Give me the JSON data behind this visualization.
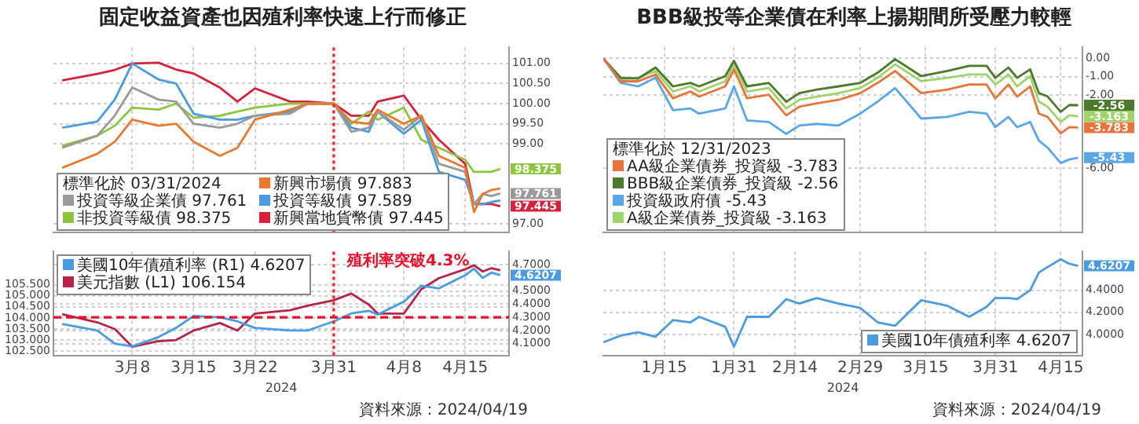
{
  "chart_data": [
    {
      "type": "line",
      "title": "固定收益資產也因殖利率快速上行而修正",
      "legend_title": "標準化於 03/31/2024",
      "legend": "bottom left",
      "grid": true,
      "tick_labels": "y",
      "x": [
        "2024-02-29",
        "2024-03-04",
        "2024-03-06",
        "2024-03-08",
        "2024-03-11",
        "2024-03-13",
        "2024-03-15",
        "2024-03-18",
        "2024-03-20",
        "2024-03-22",
        "2024-03-26",
        "2024-03-28",
        "2024-03-31",
        "2024-04-02",
        "2024-04-04",
        "2024-04-05",
        "2024-04-08",
        "2024-04-10",
        "2024-04-12",
        "2024-04-15",
        "2024-04-16",
        "2024-04-17",
        "2024-04-18",
        "2024-04-19"
      ],
      "xlim": [
        "2024-02-28",
        "2024-04-20"
      ],
      "xticks": [
        {
          "value": "2024-03-08",
          "label": null
        },
        {
          "value": "2024-03-15",
          "label": null
        },
        {
          "value": "2024-03-22",
          "label": null
        },
        {
          "value": "2024-03-31",
          "label": null
        },
        {
          "value": "2024-04-08",
          "label": null
        },
        {
          "value": "2024-04-15",
          "label": null
        }
      ],
      "ylim": [
        96.8,
        101.4
      ],
      "yticks": [
        {
          "value": 97,
          "label": "97.00"
        },
        {
          "value": 99,
          "label": "99.00"
        },
        {
          "value": 99.5,
          "label": "99.50"
        },
        {
          "value": 100,
          "label": "100.00"
        },
        {
          "value": 100.5,
          "label": "100.50"
        },
        {
          "value": 101,
          "label": "101.00"
        }
      ],
      "ref_lines": [
        {
          "axis": "x",
          "value": "2024-03-31",
          "color": "#ff1f1f",
          "line_style": "dotted"
        }
      ],
      "series": [
        {
          "name": "新興市場債 97.883",
          "color": "#e87a2e",
          "values": [
            98.4,
            98.75,
            99.05,
            99.6,
            99.45,
            99.5,
            99.05,
            98.7,
            98.9,
            99.6,
            99.85,
            100.0,
            100.0,
            99.55,
            99.5,
            99.85,
            99.5,
            99.7,
            98.7,
            98.4,
            97.3,
            97.75,
            97.85,
            97.883
          ]
        },
        {
          "name": "投資等級企業債 97.761",
          "color": "#9a9a9a",
          "values": [
            98.9,
            99.2,
            99.7,
            100.4,
            100.1,
            100.05,
            99.5,
            99.4,
            99.5,
            99.7,
            99.75,
            100.0,
            100.0,
            99.3,
            99.4,
            99.8,
            99.35,
            99.7,
            98.5,
            98.3,
            97.5,
            97.75,
            97.7,
            97.761
          ],
          "value_labels": [
            null,
            null,
            null,
            null,
            null,
            null,
            null,
            null,
            null,
            null,
            null,
            null,
            null,
            null,
            null,
            null,
            null,
            null,
            null,
            null,
            null,
            null,
            null,
            "97.761"
          ]
        },
        {
          "name": "投資等級債 97.589",
          "color": "#4a9be0",
          "values": [
            99.4,
            99.55,
            100.1,
            101.0,
            100.6,
            100.5,
            99.75,
            99.6,
            99.6,
            99.7,
            99.8,
            100.0,
            100.0,
            99.4,
            99.3,
            99.8,
            99.25,
            99.6,
            98.3,
            98.1,
            97.5,
            97.5,
            97.55,
            97.589
          ]
        },
        {
          "name": "非投資等級債 98.375",
          "color": "#8cc63f",
          "values": [
            98.95,
            99.2,
            99.45,
            99.9,
            99.85,
            100.0,
            99.65,
            99.7,
            99.8,
            99.9,
            100.0,
            100.0,
            100.0,
            99.5,
            99.8,
            99.6,
            99.9,
            99.1,
            98.9,
            98.6,
            98.3,
            98.3,
            98.3,
            98.375
          ],
          "value_labels": [
            null,
            null,
            null,
            null,
            null,
            null,
            null,
            null,
            null,
            null,
            null,
            null,
            null,
            null,
            null,
            null,
            null,
            null,
            null,
            null,
            null,
            null,
            null,
            "98.375"
          ]
        },
        {
          "name": "新興當地貨幣債 97.445",
          "color": "#d6213c",
          "values": [
            100.58,
            100.74,
            100.84,
            101.0,
            101.02,
            100.85,
            100.75,
            100.4,
            100.05,
            100.38,
            100.05,
            100.05,
            100.0,
            99.7,
            99.7,
            100.05,
            100.2,
            99.6,
            99.1,
            98.5,
            97.5,
            97.5,
            97.5,
            97.445
          ],
          "value_labels": [
            null,
            null,
            null,
            null,
            null,
            null,
            null,
            null,
            null,
            null,
            null,
            null,
            null,
            null,
            null,
            null,
            null,
            null,
            null,
            null,
            null,
            null,
            null,
            "97.445"
          ]
        }
      ]
    },
    {
      "type": "line",
      "xlabel": "2024",
      "legend": "top left",
      "grid": true,
      "x": [
        "2024-02-29",
        "2024-03-04",
        "2024-03-06",
        "2024-03-08",
        "2024-03-11",
        "2024-03-13",
        "2024-03-15",
        "2024-03-18",
        "2024-03-20",
        "2024-03-22",
        "2024-03-26",
        "2024-03-28",
        "2024-03-31",
        "2024-04-02",
        "2024-04-04",
        "2024-04-05",
        "2024-04-08",
        "2024-04-10",
        "2024-04-12",
        "2024-04-15",
        "2024-04-16",
        "2024-04-17",
        "2024-04-18",
        "2024-04-19"
      ],
      "xlim": [
        "2024-02-28",
        "2024-04-20"
      ],
      "xticks": [
        {
          "value": "2024-03-08",
          "label": "3月8"
        },
        {
          "value": "2024-03-15",
          "label": "3月15"
        },
        {
          "value": "2024-03-22",
          "label": "3月22"
        },
        {
          "value": "2024-03-31",
          "label": "3月31"
        },
        {
          "value": "2024-04-08",
          "label": "4月8"
        },
        {
          "value": "2024-04-15",
          "label": "4月15"
        }
      ],
      "ylim": [
        102.3,
        107.0
      ],
      "yticks": [
        {
          "value": 102.5,
          "label": "102.500"
        },
        {
          "value": 103,
          "label": "103.000"
        },
        {
          "value": 103.5,
          "label": "103.500"
        },
        {
          "value": 104,
          "label": "104.000"
        },
        {
          "value": 104.5,
          "label": "104.500"
        },
        {
          "value": 105,
          "label": "105.000"
        },
        {
          "value": 105.5,
          "label": "105.500"
        }
      ],
      "y2lim": [
        4.01,
        4.8
      ],
      "y2ticks": [
        {
          "value": 4.1,
          "label": "4.1000"
        },
        {
          "value": 4.2,
          "label": "4.2000"
        },
        {
          "value": 4.3,
          "label": "4.3000"
        },
        {
          "value": 4.4,
          "label": "4.4000"
        },
        {
          "value": 4.5,
          "label": "4.5000"
        },
        {
          "value": 4.7,
          "label": "4.7000"
        }
      ],
      "ref_lines": [
        {
          "axis": "x",
          "value": "2024-03-31",
          "color": "#ff1f1f",
          "line_style": "dotted"
        },
        {
          "axis": "y2",
          "value": 4.3,
          "label": "殖利率突破4.3%",
          "color": "#e8102a",
          "line_style": "dashed"
        }
      ],
      "annotations": [
        "資料來源：2024/04/19"
      ],
      "series": [
        {
          "name": "美國10年債殖利率 (R1) 4.6207",
          "color": "#4a9be0",
          "axis": "y2",
          "values": [
            4.25,
            4.2,
            4.1,
            4.08,
            4.15,
            4.22,
            4.31,
            4.3,
            4.27,
            4.22,
            4.2,
            4.2,
            4.27,
            4.33,
            4.35,
            4.32,
            4.42,
            4.54,
            4.52,
            4.62,
            4.67,
            4.6,
            4.64,
            4.6207
          ],
          "value_labels": [
            null,
            null,
            null,
            null,
            null,
            null,
            null,
            null,
            null,
            null,
            null,
            null,
            null,
            null,
            null,
            null,
            null,
            null,
            null,
            null,
            null,
            null,
            null,
            "4.6207"
          ]
        },
        {
          "name": "美元指數 (L1) 106.154",
          "color": "#b8234a",
          "values": [
            104.17,
            103.8,
            103.5,
            102.7,
            102.95,
            103.0,
            103.43,
            103.77,
            103.43,
            104.2,
            104.35,
            104.55,
            104.8,
            105.1,
            104.6,
            104.2,
            104.2,
            105.3,
            105.8,
            106.2,
            106.38,
            106.1,
            106.25,
            106.154
          ]
        }
      ]
    },
    {
      "type": "line",
      "title": "BBB級投等企業債在利率上揚期間所受壓力較輕",
      "legend_title": "標準化於 12/31/2023",
      "legend": "bottom left",
      "grid": true,
      "tick_labels": "y",
      "x": [
        "2024-01-01",
        "2024-01-05",
        "2024-01-09",
        "2024-01-13",
        "2024-01-17",
        "2024-01-21",
        "2024-01-23",
        "2024-01-29",
        "2024-01-31",
        "2024-02-03",
        "2024-02-08",
        "2024-02-12",
        "2024-02-15",
        "2024-02-19",
        "2024-02-24",
        "2024-02-29",
        "2024-03-04",
        "2024-03-08",
        "2024-03-14",
        "2024-03-20",
        "2024-03-25",
        "2024-03-29",
        "2024-03-31",
        "2024-04-03",
        "2024-04-05",
        "2024-04-08",
        "2024-04-10",
        "2024-04-12",
        "2024-04-15",
        "2024-04-17",
        "2024-04-19"
      ],
      "xlim": [
        "2024-01-01",
        "2024-04-20"
      ],
      "xticks": [
        {
          "value": "2024-01-15",
          "label": null
        },
        {
          "value": "2024-01-31",
          "label": null
        },
        {
          "value": "2024-02-14",
          "label": null
        },
        {
          "value": "2024-02-29",
          "label": null
        },
        {
          "value": "2024-03-15",
          "label": null
        },
        {
          "value": "2024-03-31",
          "label": null
        },
        {
          "value": "2024-04-15",
          "label": null
        }
      ],
      "ylim": [
        -9.5,
        0.6
      ],
      "yticks": [
        {
          "value": 0,
          "label": "0.00"
        },
        {
          "value": -1,
          "label": "-1.00"
        },
        {
          "value": -2,
          "label": "-2.00"
        },
        {
          "value": -6,
          "label": "-6.00"
        }
      ],
      "series": [
        {
          "name": "AA級企業債券_投資級 -3.783",
          "color": "#e8743b",
          "values": [
            0,
            -1.25,
            -1.25,
            -0.88,
            -2.18,
            -1.81,
            -2.09,
            -1.53,
            -0.6,
            -2.18,
            -1.99,
            -3.11,
            -2.64,
            -2.46,
            -2.27,
            -1.9,
            -1.34,
            -0.69,
            -1.9,
            -1.71,
            -1.43,
            -1.43,
            -2.18,
            -1.43,
            -2.09,
            -1.53,
            -3.02,
            -3.2,
            -4.1,
            -3.76,
            -3.783
          ],
          "value_labels": [
            null,
            null,
            null,
            null,
            null,
            null,
            null,
            null,
            null,
            null,
            null,
            null,
            null,
            null,
            null,
            null,
            null,
            null,
            null,
            null,
            null,
            null,
            null,
            null,
            null,
            null,
            null,
            null,
            null,
            null,
            "-3.783"
          ]
        },
        {
          "name": "BBB級企業債券_投資級 -2.56",
          "color": "#4a7a2a",
          "values": [
            0,
            -1.06,
            -1.1,
            -0.5,
            -1.53,
            -1.34,
            -1.53,
            -0.97,
            -0.13,
            -1.53,
            -1.34,
            -2.37,
            -1.9,
            -1.71,
            -1.53,
            -1.34,
            -0.78,
            -0.04,
            -0.97,
            -0.69,
            -0.41,
            -0.41,
            -1.06,
            -0.5,
            -1.06,
            -0.6,
            -1.9,
            -2.08,
            -2.92,
            -2.55,
            -2.56
          ],
          "value_labels": [
            null,
            null,
            null,
            null,
            null,
            null,
            null,
            null,
            null,
            null,
            null,
            null,
            null,
            null,
            null,
            null,
            null,
            null,
            null,
            null,
            null,
            null,
            null,
            null,
            null,
            null,
            null,
            null,
            null,
            null,
            "-2.56"
          ]
        },
        {
          "name": "投資級政府債 -5.43",
          "color": "#5aa6e6",
          "values": [
            0,
            -1.34,
            -1.53,
            -1.06,
            -2.83,
            -2.74,
            -3.02,
            -2.74,
            -1.53,
            -3.39,
            -3.48,
            -4.13,
            -3.67,
            -3.58,
            -3.67,
            -3.02,
            -2.36,
            -1.62,
            -3.29,
            -3.2,
            -2.92,
            -3.02,
            -3.76,
            -3.2,
            -3.76,
            -3.48,
            -4.5,
            -4.88,
            -5.72,
            -5.53,
            -5.43
          ],
          "value_labels": [
            null,
            null,
            null,
            null,
            null,
            null,
            null,
            null,
            null,
            null,
            null,
            null,
            null,
            null,
            null,
            null,
            null,
            null,
            null,
            null,
            null,
            null,
            null,
            null,
            null,
            null,
            null,
            null,
            null,
            null,
            "-5.43"
          ]
        },
        {
          "name": "A級企業債券_投資級 -3.163",
          "color": "#9fd36b",
          "values": [
            0,
            -1.15,
            -1.06,
            -0.69,
            -1.81,
            -1.53,
            -1.81,
            -1.25,
            -0.32,
            -1.81,
            -1.62,
            -2.74,
            -2.27,
            -2.09,
            -1.9,
            -1.62,
            -1.06,
            -0.32,
            -1.25,
            -1.06,
            -0.88,
            -0.88,
            -1.43,
            -0.88,
            -1.53,
            -0.97,
            -2.36,
            -2.64,
            -3.48,
            -3.11,
            -3.163
          ],
          "value_labels": [
            null,
            null,
            null,
            null,
            null,
            null,
            null,
            null,
            null,
            null,
            null,
            null,
            null,
            null,
            null,
            null,
            null,
            null,
            null,
            null,
            null,
            null,
            null,
            null,
            null,
            null,
            null,
            null,
            null,
            null,
            "-3.163"
          ]
        }
      ]
    },
    {
      "type": "line",
      "xlabel": "2024",
      "legend": "bottom right",
      "grid": true,
      "x": [
        "2024-01-01",
        "2024-01-05",
        "2024-01-09",
        "2024-01-13",
        "2024-01-17",
        "2024-01-21",
        "2024-01-23",
        "2024-01-29",
        "2024-01-31",
        "2024-02-03",
        "2024-02-08",
        "2024-02-12",
        "2024-02-15",
        "2024-02-19",
        "2024-02-24",
        "2024-02-29",
        "2024-03-04",
        "2024-03-08",
        "2024-03-14",
        "2024-03-20",
        "2024-03-25",
        "2024-03-29",
        "2024-03-31",
        "2024-04-03",
        "2024-04-05",
        "2024-04-08",
        "2024-04-10",
        "2024-04-12",
        "2024-04-15",
        "2024-04-17",
        "2024-04-19"
      ],
      "xlim": [
        "2024-01-01",
        "2024-04-20"
      ],
      "xticks": [
        {
          "value": "2024-01-15",
          "label": "1月15"
        },
        {
          "value": "2024-01-31",
          "label": "1月31"
        },
        {
          "value": "2024-02-14",
          "label": "2月14"
        },
        {
          "value": "2024-02-29",
          "label": "2月29"
        },
        {
          "value": "2024-03-15",
          "label": "3月15"
        },
        {
          "value": "2024-03-31",
          "label": "3月31"
        },
        {
          "value": "2024-04-15",
          "label": "4月15"
        }
      ],
      "ylim": [
        3.81,
        4.75
      ],
      "yticks": [
        {
          "value": 4.0,
          "label": "4.0000"
        },
        {
          "value": 4.2,
          "label": "4.2000"
        },
        {
          "value": 4.4,
          "label": "4.4000"
        }
      ],
      "annotations": [
        "資料來源：2024/04/19"
      ],
      "series": [
        {
          "name": "美國10年債殖利率 4.6207",
          "color": "#4a9be0",
          "values": [
            3.93,
            3.99,
            4.02,
            3.98,
            4.13,
            4.11,
            4.16,
            4.07,
            3.89,
            4.16,
            4.16,
            4.32,
            4.28,
            4.33,
            4.28,
            4.24,
            4.11,
            4.08,
            4.31,
            4.26,
            4.16,
            4.25,
            4.33,
            4.33,
            4.32,
            4.4,
            4.56,
            4.61,
            4.68,
            4.64,
            4.6207
          ],
          "value_labels": [
            null,
            null,
            null,
            null,
            null,
            null,
            null,
            null,
            null,
            null,
            null,
            null,
            null,
            null,
            null,
            null,
            null,
            null,
            null,
            null,
            null,
            null,
            null,
            null,
            null,
            null,
            null,
            null,
            null,
            null,
            "4.6207"
          ]
        }
      ]
    }
  ]
}
